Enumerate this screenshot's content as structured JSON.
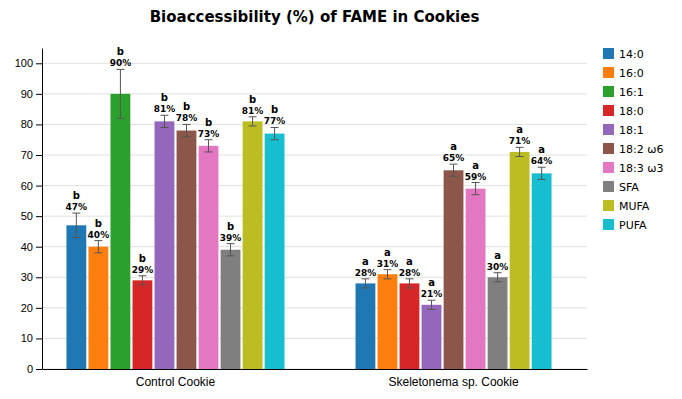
{
  "chart_data": {
    "type": "bar",
    "title": "Bioaccessibility (%) of FAME in Cookies",
    "categories": [
      "Control Cookie",
      "Skeletonema sp. Cookie"
    ],
    "series": [
      {
        "name": "14:0",
        "values": [
          47,
          28
        ],
        "errors": [
          4.0,
          1.5
        ],
        "value_labels": [
          "47%",
          "28%"
        ],
        "significance": [
          "b",
          "a"
        ]
      },
      {
        "name": "16:0",
        "values": [
          40,
          31
        ],
        "errors": [
          2.0,
          1.5
        ],
        "value_labels": [
          "40%",
          "31%"
        ],
        "significance": [
          "b",
          "a"
        ]
      },
      {
        "name": "16:1",
        "values": [
          90,
          null
        ],
        "errors": [
          8.0,
          null
        ],
        "value_labels": [
          "90%",
          null
        ],
        "significance": [
          "b",
          null
        ]
      },
      {
        "name": "18:0",
        "values": [
          29,
          28
        ],
        "errors": [
          1.5,
          1.5
        ],
        "value_labels": [
          "29%",
          "28%"
        ],
        "significance": [
          "b",
          "a"
        ]
      },
      {
        "name": "18:1",
        "values": [
          81,
          21
        ],
        "errors": [
          2.0,
          1.5
        ],
        "value_labels": [
          "81%",
          "21%"
        ],
        "significance": [
          "b",
          "a"
        ]
      },
      {
        "name": "18:2 ω6",
        "values": [
          78,
          65
        ],
        "errors": [
          2.0,
          2.0
        ],
        "value_labels": [
          "78%",
          "65%"
        ],
        "significance": [
          "b",
          "a"
        ]
      },
      {
        "name": "18:3 ω3",
        "values": [
          73,
          59
        ],
        "errors": [
          2.0,
          2.0
        ],
        "value_labels": [
          "73%",
          "59%"
        ],
        "significance": [
          "b",
          "a"
        ]
      },
      {
        "name": "SFA",
        "values": [
          39,
          30
        ],
        "errors": [
          2.0,
          1.5
        ],
        "value_labels": [
          "39%",
          "30%"
        ],
        "significance": [
          "b",
          "a"
        ]
      },
      {
        "name": "MUFA",
        "values": [
          81,
          71
        ],
        "errors": [
          1.5,
          1.5
        ],
        "value_labels": [
          "81%",
          "71%"
        ],
        "significance": [
          "b",
          "a"
        ]
      },
      {
        "name": "PUFA",
        "values": [
          77,
          64
        ],
        "errors": [
          2.0,
          2.0
        ],
        "value_labels": [
          "77%",
          "64%"
        ],
        "significance": [
          "b",
          "a"
        ]
      }
    ],
    "ylim": [
      0,
      105
    ],
    "yticks": [
      0,
      10,
      20,
      30,
      40,
      50,
      60,
      70,
      80,
      90,
      100
    ],
    "grid": true,
    "legend": "right",
    "data_labels": true
  }
}
